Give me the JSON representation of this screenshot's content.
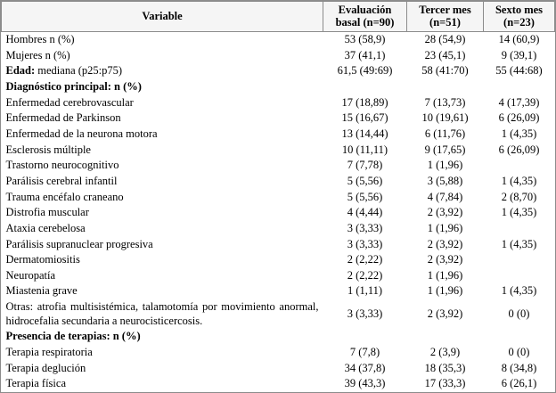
{
  "table": {
    "headers": [
      "Variable",
      "Evaluación\nbasal (n=90)",
      "Tercer mes\n(n=51)",
      "Sexto mes\n(n=23)"
    ],
    "rows": [
      {
        "label": "Hombres n (%)",
        "values": [
          "53 (58,9)",
          "28 (54,9)",
          "14 (60,9)"
        ]
      },
      {
        "label": "Mujeres n (%)",
        "values": [
          "37 (41,1)",
          "23 (45,1)",
          "9 (39,1)"
        ]
      },
      {
        "label": "Edad: mediana (p25:p75)",
        "bold_prefix": "Edad:",
        "values": [
          "61,5 (49:69)",
          "58 (41:70)",
          "55 (44:68)"
        ]
      },
      {
        "label": "Diagnóstico principal: n (%)",
        "bold": true,
        "values": [
          "",
          "",
          ""
        ]
      },
      {
        "label": "Enfermedad cerebrovascular",
        "values": [
          "17 (18,89)",
          "7 (13,73)",
          "4 (17,39)"
        ]
      },
      {
        "label": "Enfermedad de Parkinson",
        "values": [
          "15 (16,67)",
          "10 (19,61)",
          "6 (26,09)"
        ]
      },
      {
        "label": "Enfermedad de la neurona motora",
        "values": [
          "13 (14,44)",
          "6 (11,76)",
          "1 (4,35)"
        ]
      },
      {
        "label": "Esclerosis múltiple",
        "values": [
          "10 (11,11)",
          "9 (17,65)",
          "6 (26,09)"
        ]
      },
      {
        "label": "Trastorno neurocognitivo",
        "values": [
          "7 (7,78)",
          "1 (1,96)",
          ""
        ]
      },
      {
        "label": "Parálisis cerebral infantil",
        "values": [
          "5 (5,56)",
          "3 (5,88)",
          "1 (4,35)"
        ]
      },
      {
        "label": "Trauma encéfalo craneano",
        "values": [
          "5 (5,56)",
          "4 (7,84)",
          "2 (8,70)"
        ]
      },
      {
        "label": "Distrofia muscular",
        "values": [
          "4 (4,44)",
          "2 (3,92)",
          "1 (4,35)"
        ]
      },
      {
        "label": "Ataxia cerebelosa",
        "values": [
          "3 (3,33)",
          "1 (1,96)",
          ""
        ]
      },
      {
        "label": "Parálisis supranuclear progresiva",
        "values": [
          "3 (3,33)",
          "2 (3,92)",
          "1 (4,35)"
        ]
      },
      {
        "label": "Dermatomiositis",
        "values": [
          "2 (2,22)",
          "2 (3,92)",
          ""
        ]
      },
      {
        "label": "Neuropatía",
        "values": [
          "2 (2,22)",
          "1 (1,96)",
          ""
        ]
      },
      {
        "label": "Miastenia grave",
        "values": [
          "1 (1,11)",
          "1 (1,96)",
          "1 (4,35)"
        ]
      },
      {
        "label": "Otras: atrofia multisistémica, talamotomía por movimiento anormal, hidrocefalia secundaria a neurocisticercosis.",
        "justify": true,
        "values": [
          "3 (3,33)",
          "2 (3,92)",
          "0 (0)"
        ]
      },
      {
        "label": "Presencia de terapias: n (%)",
        "bold": true,
        "values": [
          "",
          "",
          ""
        ]
      },
      {
        "label": "Terapia respiratoria",
        "values": [
          "7 (7,8)",
          "2 (3,9)",
          "0 (0)"
        ]
      },
      {
        "label": "Terapia deglución",
        "values": [
          "34 (37,8)",
          "18 (35,3)",
          "8 (34,8)"
        ]
      },
      {
        "label": "Terapia física",
        "values": [
          "39 (43,3)",
          "17 (33,3)",
          "6 (26,1)"
        ]
      }
    ]
  }
}
